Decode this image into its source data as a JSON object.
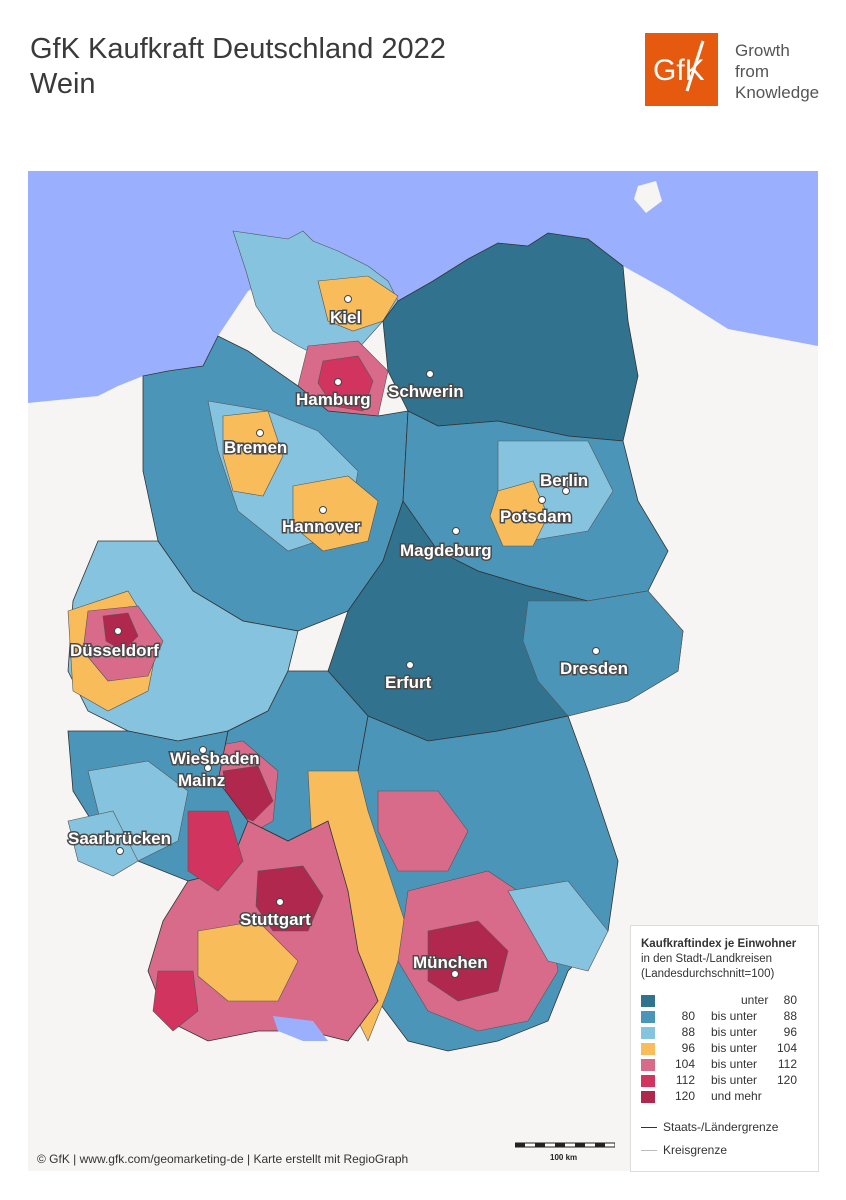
{
  "header": {
    "title_line1": "GfK Kaufkraft Deutschland 2022",
    "title_line2": "Wein"
  },
  "logo": {
    "mark": "GfK",
    "tagline_line1": "Growth",
    "tagline_line2": "from",
    "tagline_line3": "Knowledge",
    "color": "#e55a0f"
  },
  "colors": {
    "sea": "#9ab0ff",
    "neighbor": "#f6f5f4",
    "border": "#333333",
    "class1": "#31738e",
    "class2": "#4b96b8",
    "class3": "#86c3de",
    "class4": "#f8bd5a",
    "class5": "#d86a8a",
    "class6": "#d1345e",
    "class7": "#b1284e"
  },
  "cities": [
    {
      "name": "Kiel"
    },
    {
      "name": "Hamburg"
    },
    {
      "name": "Schwerin"
    },
    {
      "name": "Bremen"
    },
    {
      "name": "Berlin"
    },
    {
      "name": "Potsdam"
    },
    {
      "name": "Hannover"
    },
    {
      "name": "Magdeburg"
    },
    {
      "name": "Düsseldorf"
    },
    {
      "name": "Erfurt"
    },
    {
      "name": "Dresden"
    },
    {
      "name": "Wiesbaden"
    },
    {
      "name": "Mainz"
    },
    {
      "name": "Saarbrücken"
    },
    {
      "name": "Stuttgart"
    },
    {
      "name": "München"
    }
  ],
  "legend": {
    "title": "Kaufkraftindex je Einwohner",
    "subtitle_line1": "in den Stadt-/Landkreisen",
    "subtitle_line2": "(Landesdurchschnitt=100)",
    "classes": [
      {
        "from": "",
        "label": "unter",
        "to": "80",
        "color": "#31738e"
      },
      {
        "from": "80",
        "label": "bis unter",
        "to": "88",
        "color": "#4b96b8"
      },
      {
        "from": "88",
        "label": "bis unter",
        "to": "96",
        "color": "#86c3de"
      },
      {
        "from": "96",
        "label": "bis unter",
        "to": "104",
        "color": "#f8bd5a"
      },
      {
        "from": "104",
        "label": "bis unter",
        "to": "112",
        "color": "#d86a8a"
      },
      {
        "from": "112",
        "label": "bis unter",
        "to": "120",
        "color": "#d1345e"
      },
      {
        "from": "120",
        "label": "und mehr",
        "to": "",
        "color": "#b1284e"
      }
    ],
    "line_state": "Staats-/Ländergrenze",
    "line_district": "Kreisgrenze"
  },
  "scale_bar": {
    "label": "100 km"
  },
  "credit": "© GfK | www.gfk.com/geomarketing-de | Karte erstellt mit RegioGraph"
}
